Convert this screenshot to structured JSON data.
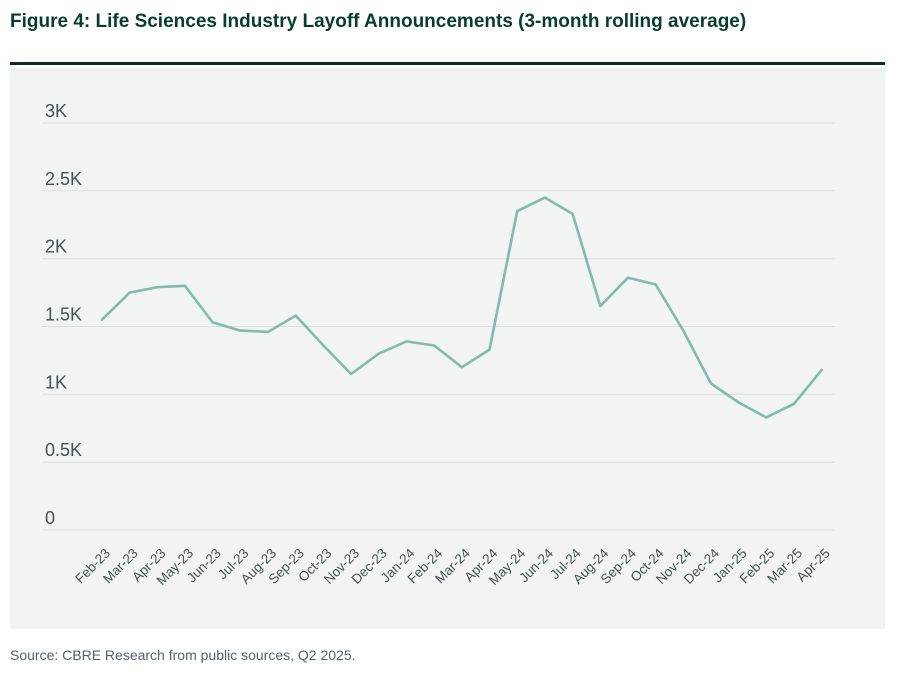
{
  "figure": {
    "title": "Figure 4: Life Sciences Industry Layoff Announcements (3-month rolling average)"
  },
  "source": {
    "text": "Source: CBRE Research from public sources, Q2 2025."
  },
  "colors": {
    "title_green": "#073C30",
    "rule_dark": "#0A2B26",
    "panel_bg": "#F2F4F3",
    "gridline": "#DBE0DE",
    "axis_text": "#435254",
    "line": "#80BBAD",
    "source_text": "#54606A"
  },
  "chart_data": {
    "type": "line",
    "title": "Figure 4: Life Sciences Industry Layoff Announcements (3-month rolling average)",
    "series_name": "Layoff announcements (3-month rolling average)",
    "categories": [
      "Feb-23",
      "Mar-23",
      "Apr-23",
      "May-23",
      "Jun-23",
      "Jul-23",
      "Aug-23",
      "Sep-23",
      "Oct-23",
      "Nov-23",
      "Dec-23",
      "Jan-24",
      "Feb-24",
      "Mar-24",
      "Apr-24",
      "May-24",
      "Jun-24",
      "Jul-24",
      "Aug-24",
      "Sep-24",
      "Oct-24",
      "Nov-24",
      "Dec-24",
      "Jan-25",
      "Feb-25",
      "Mar-25",
      "Apr-25"
    ],
    "values": [
      1550,
      1750,
      1790,
      1800,
      1530,
      1470,
      1460,
      1580,
      1360,
      1150,
      1300,
      1390,
      1360,
      1200,
      1330,
      2350,
      2450,
      2330,
      1650,
      1860,
      1810,
      1470,
      1080,
      940,
      830,
      930,
      1180
    ],
    "xlabel": "",
    "ylabel": "",
    "ylim": [
      0,
      3000
    ],
    "y_ticks": [
      {
        "label": "0",
        "value": 0
      },
      {
        "label": "0.5K",
        "value": 500
      },
      {
        "label": "1K",
        "value": 1000
      },
      {
        "label": "1.5K",
        "value": 1500
      },
      {
        "label": "2K",
        "value": 2000
      },
      {
        "label": "2.5K",
        "value": 2500
      },
      {
        "label": "3K",
        "value": 3000
      }
    ],
    "grid": "horizontal",
    "legend": "none",
    "x_label_rotation_deg": -45
  }
}
